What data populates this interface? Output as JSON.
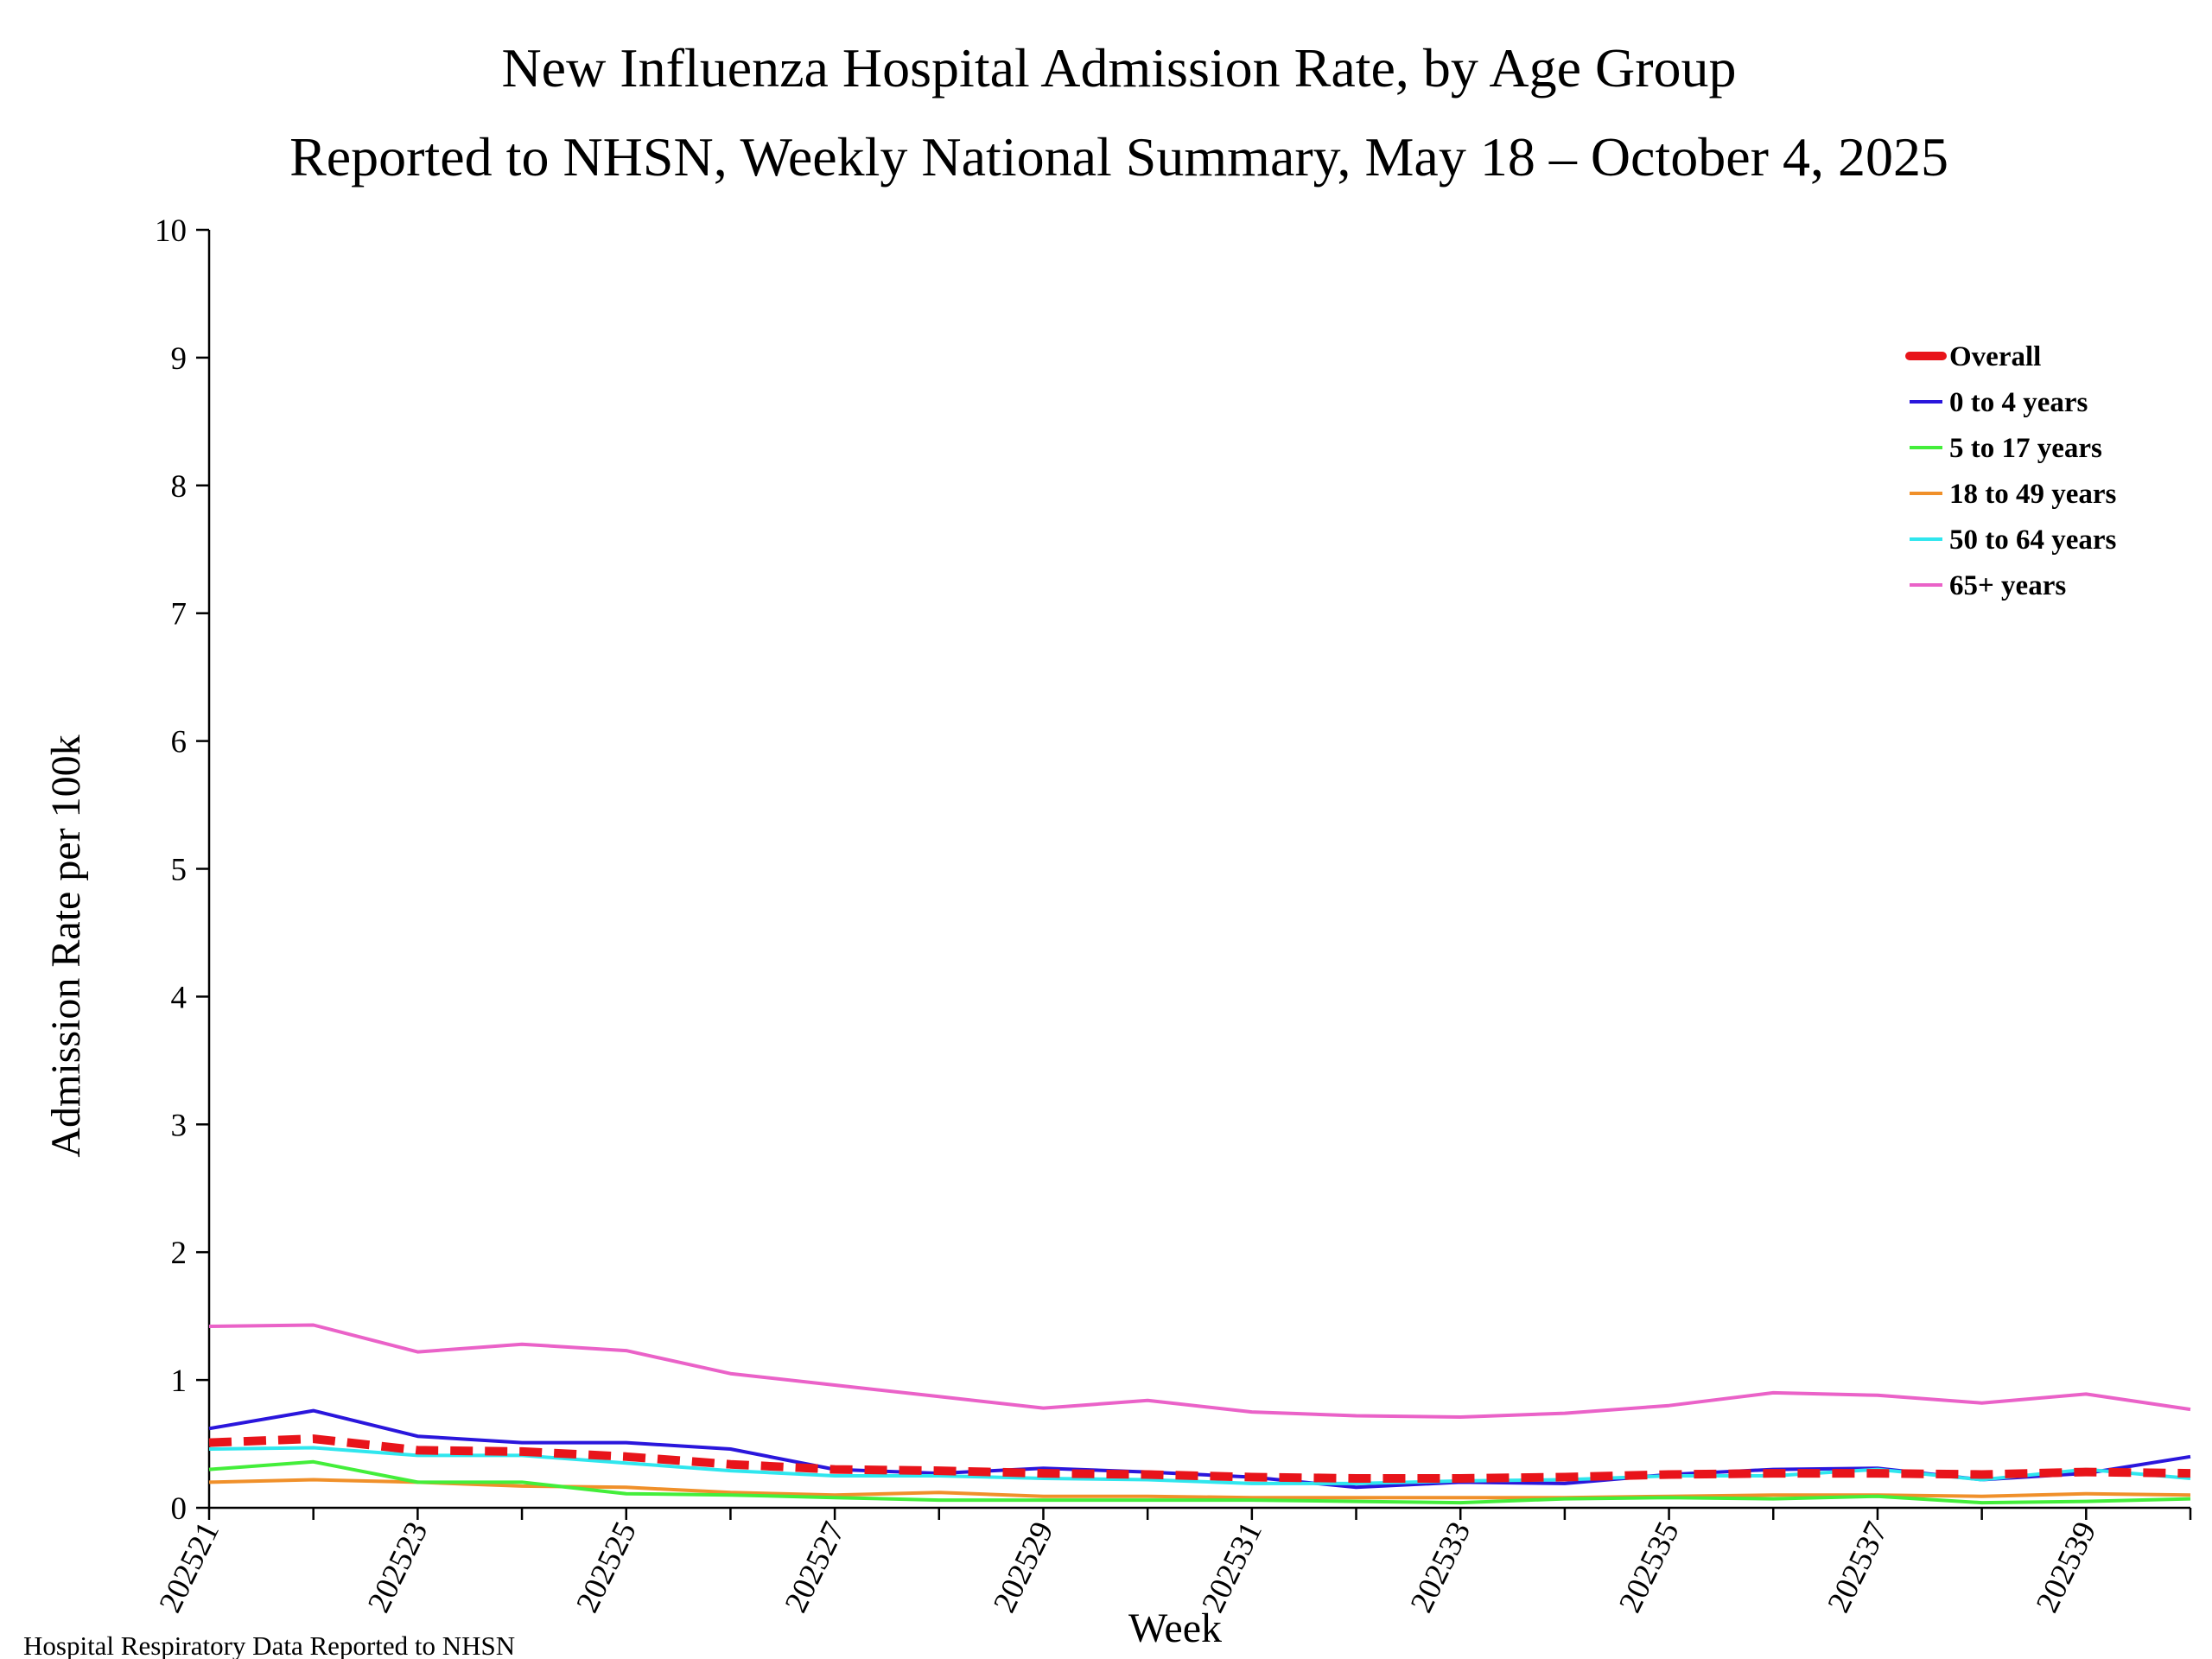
{
  "chart_data": {
    "type": "line",
    "title": "New Influenza Hospital Admission Rate, by Age Group",
    "subtitle": "Reported to NHSN, Weekly National Summary, May 18 – October 4, 2025",
    "xlabel": "Week",
    "ylabel": "Admission Rate per 100k",
    "ylim": [
      0,
      10
    ],
    "yticks": [
      "0",
      "1",
      "2",
      "3",
      "4",
      "5",
      "6",
      "7",
      "8",
      "9",
      "10"
    ],
    "x": [
      "202521",
      "202522",
      "202523",
      "202524",
      "202525",
      "202526",
      "202527",
      "202528",
      "202529",
      "202530",
      "202531",
      "202532",
      "202533",
      "202534",
      "202535",
      "202536",
      "202537",
      "202538",
      "202539",
      "202540"
    ],
    "xtick_labels": [
      "202521",
      "202523",
      "202525",
      "202527",
      "202529",
      "202531",
      "202533",
      "202535",
      "202537",
      "202539"
    ],
    "legend_position": "top-right",
    "series": [
      {
        "name": "Overall",
        "color": "#e8141a",
        "style": "dashed",
        "values": [
          0.51,
          0.54,
          0.45,
          0.44,
          0.4,
          0.34,
          0.3,
          0.29,
          0.27,
          0.26,
          0.24,
          0.23,
          0.23,
          0.24,
          0.26,
          0.27,
          0.27,
          0.26,
          0.28,
          0.27
        ]
      },
      {
        "name": "0 to 4 years",
        "color": "#2a16dc",
        "style": "solid",
        "values": [
          0.62,
          0.76,
          0.56,
          0.51,
          0.51,
          0.46,
          0.3,
          0.27,
          0.31,
          0.28,
          0.24,
          0.16,
          0.2,
          0.19,
          0.26,
          0.3,
          0.31,
          0.22,
          0.27,
          0.4
        ]
      },
      {
        "name": "5 to 17 years",
        "color": "#43ee3a",
        "style": "solid",
        "values": [
          0.3,
          0.36,
          0.2,
          0.2,
          0.11,
          0.1,
          0.08,
          0.06,
          0.06,
          0.06,
          0.06,
          0.05,
          0.04,
          0.07,
          0.08,
          0.07,
          0.09,
          0.04,
          0.05,
          0.07
        ]
      },
      {
        "name": "18 to 49 years",
        "color": "#f0902a",
        "style": "solid",
        "values": [
          0.2,
          0.22,
          0.2,
          0.17,
          0.16,
          0.12,
          0.1,
          0.12,
          0.09,
          0.09,
          0.08,
          0.08,
          0.08,
          0.08,
          0.09,
          0.1,
          0.1,
          0.09,
          0.11,
          0.1
        ]
      },
      {
        "name": "50 to 64 years",
        "color": "#2fe6ee",
        "style": "solid",
        "values": [
          0.46,
          0.47,
          0.41,
          0.41,
          0.35,
          0.29,
          0.25,
          0.25,
          0.23,
          0.22,
          0.19,
          0.19,
          0.21,
          0.22,
          0.25,
          0.25,
          0.3,
          0.22,
          0.3,
          0.23
        ]
      },
      {
        "name": "65+ years",
        "color": "#ea62c8",
        "style": "solid",
        "values": [
          1.42,
          1.43,
          1.22,
          1.28,
          1.23,
          1.05,
          0.96,
          0.87,
          0.78,
          0.84,
          0.75,
          0.72,
          0.71,
          0.74,
          0.8,
          0.9,
          0.88,
          0.82,
          0.89,
          0.77
        ]
      }
    ]
  },
  "footer": {
    "source": "Hospital Respiratory Data Reported to NHSN"
  }
}
